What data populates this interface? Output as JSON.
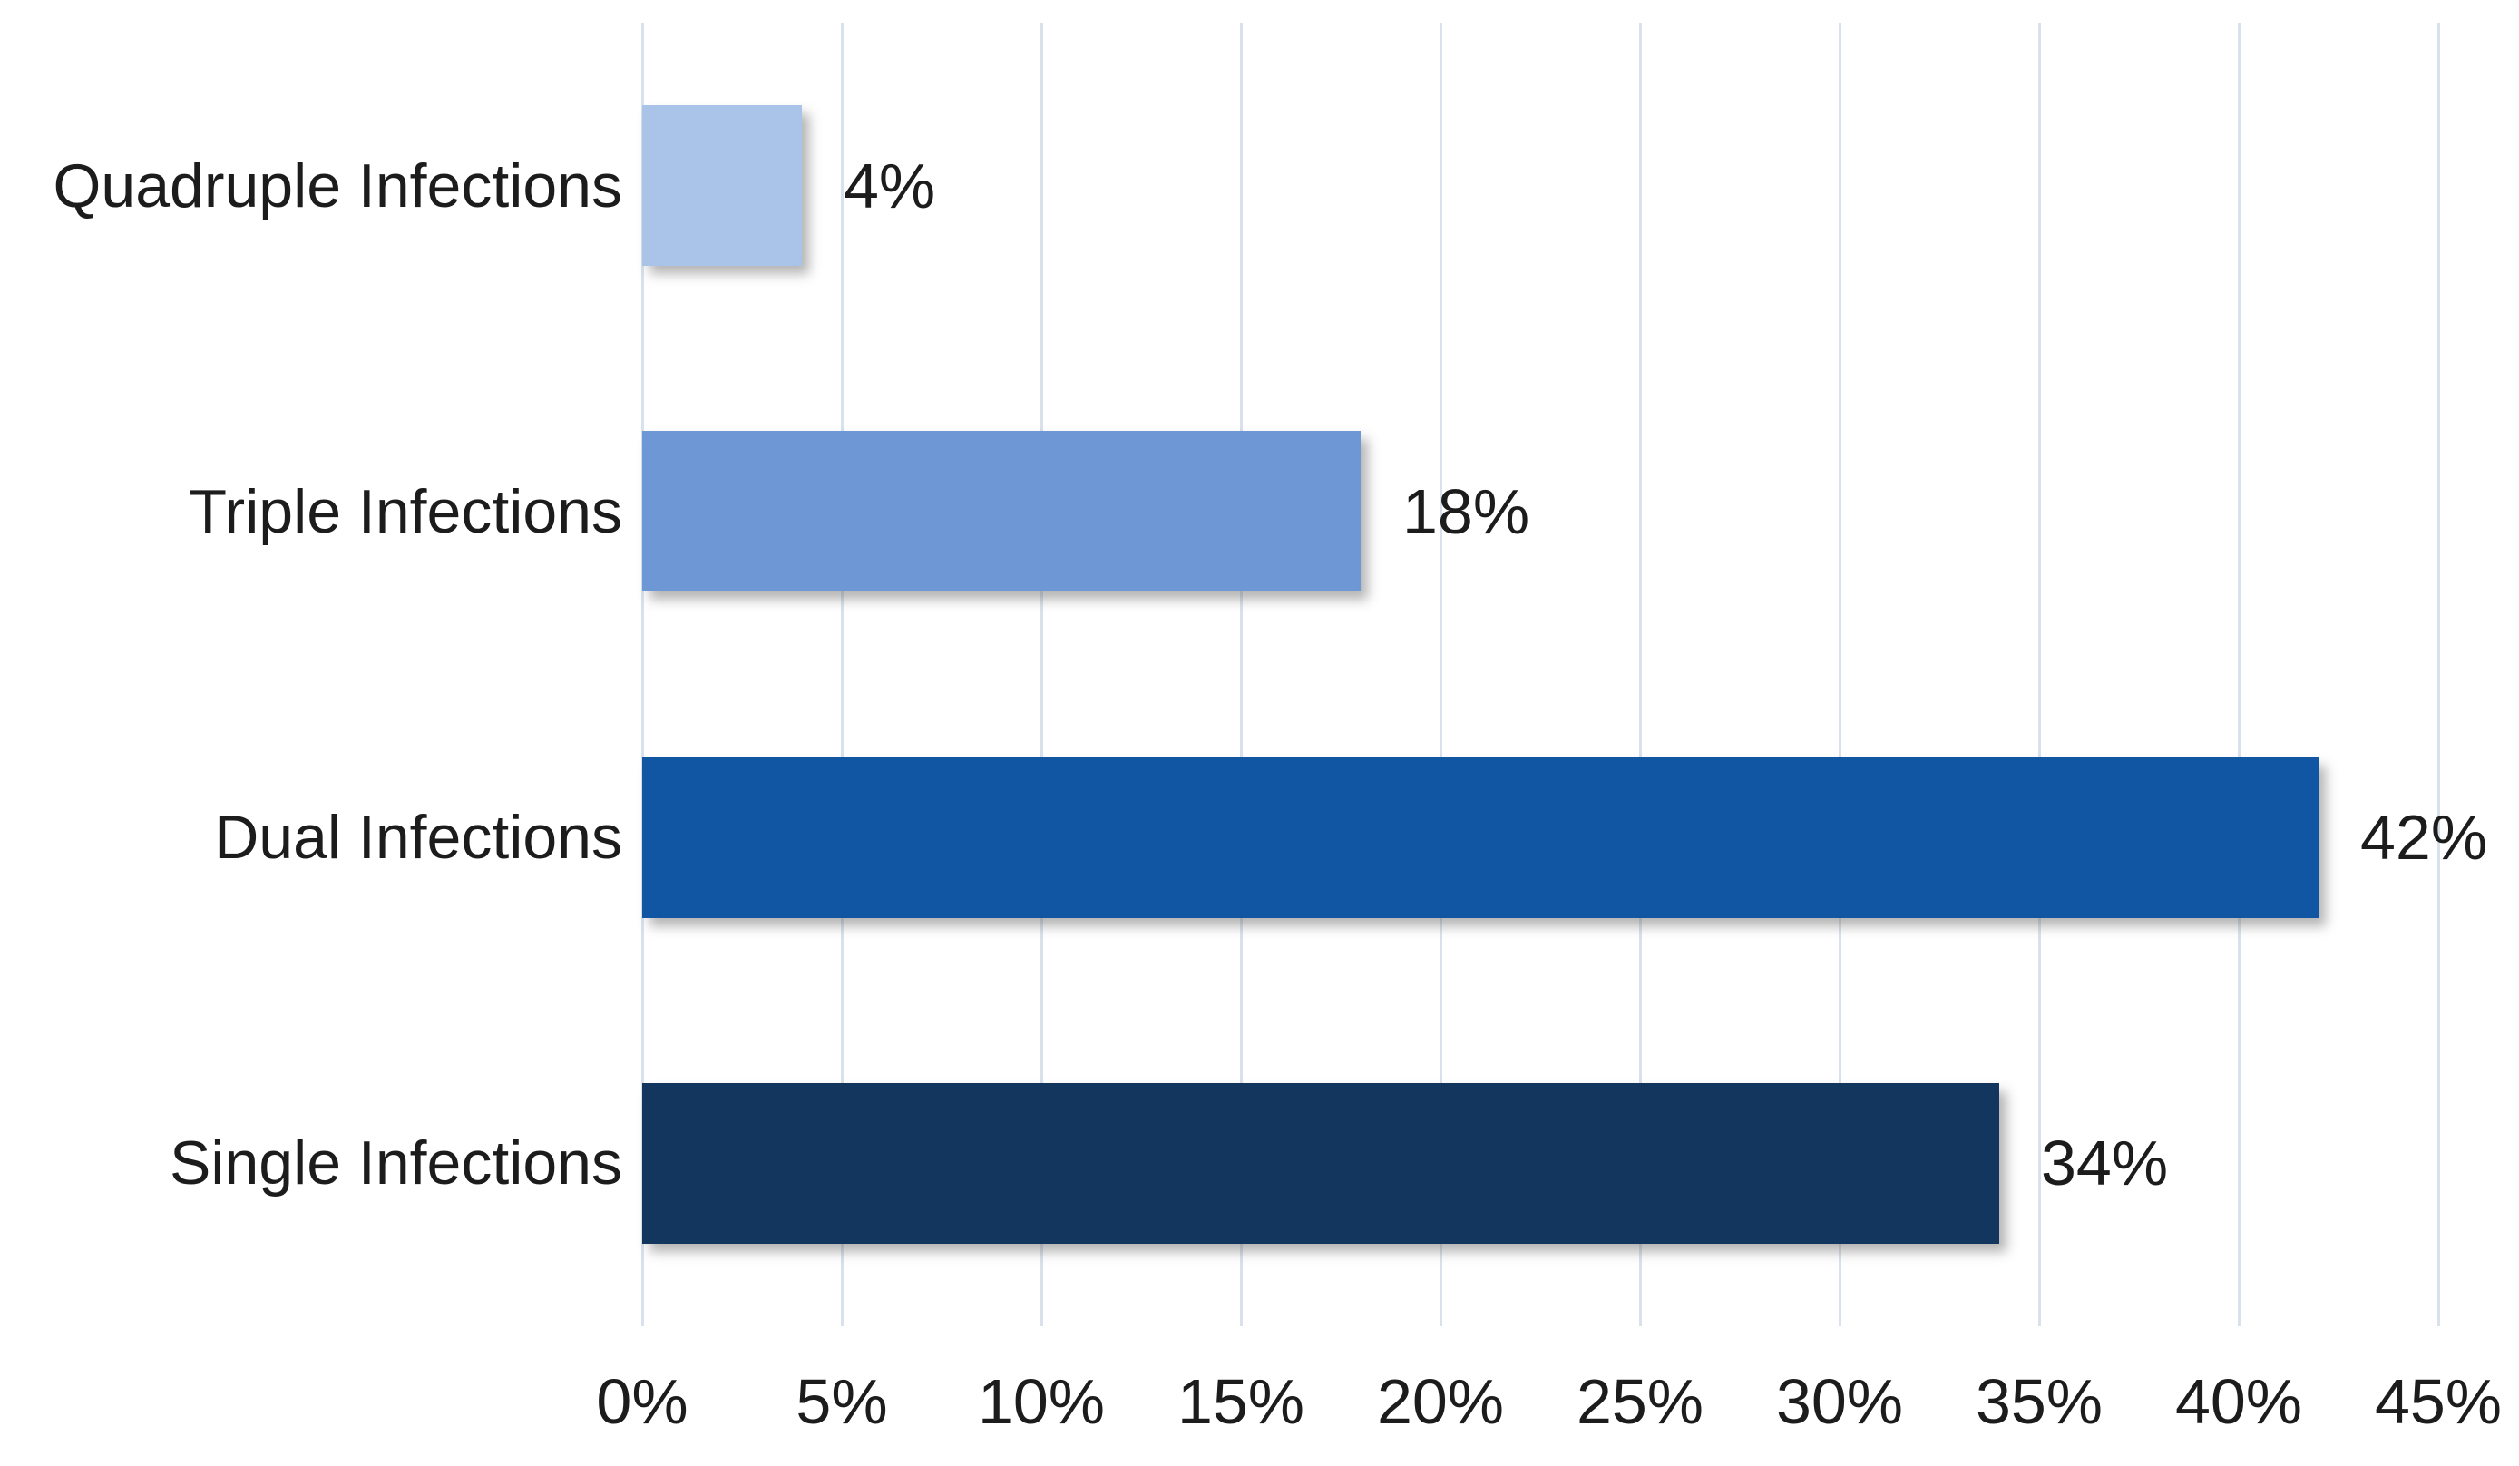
{
  "chart_data": {
    "type": "bar",
    "orientation": "horizontal",
    "title": "",
    "xlabel": "",
    "ylabel": "",
    "categories": [
      "Quadruple Infections",
      "Triple Infections",
      "Dual Infections",
      "Single Infections"
    ],
    "values": [
      4,
      18,
      42,
      34
    ],
    "value_labels": [
      "4%",
      "18%",
      "42%",
      "34%"
    ],
    "bar_colors": [
      "#A9C4E8",
      "#6D98D5",
      "#1156A2",
      "#12365E"
    ],
    "x_ticks": [
      {
        "value": 0,
        "label": "0%"
      },
      {
        "value": 5,
        "label": "5%"
      },
      {
        "value": 10,
        "label": "10%"
      },
      {
        "value": 15,
        "label": "15%"
      },
      {
        "value": 20,
        "label": "20%"
      },
      {
        "value": 25,
        "label": "25%"
      },
      {
        "value": 30,
        "label": "30%"
      },
      {
        "value": 35,
        "label": "35%"
      },
      {
        "value": 40,
        "label": "40%"
      },
      {
        "value": 45,
        "label": "45%"
      }
    ],
    "xlim": [
      0,
      45
    ],
    "grid": "vertical",
    "legend": "none",
    "colors": {
      "background": "#FFFFFF",
      "gridline": "#D9E2EC",
      "text": "#1C1C1C"
    }
  }
}
